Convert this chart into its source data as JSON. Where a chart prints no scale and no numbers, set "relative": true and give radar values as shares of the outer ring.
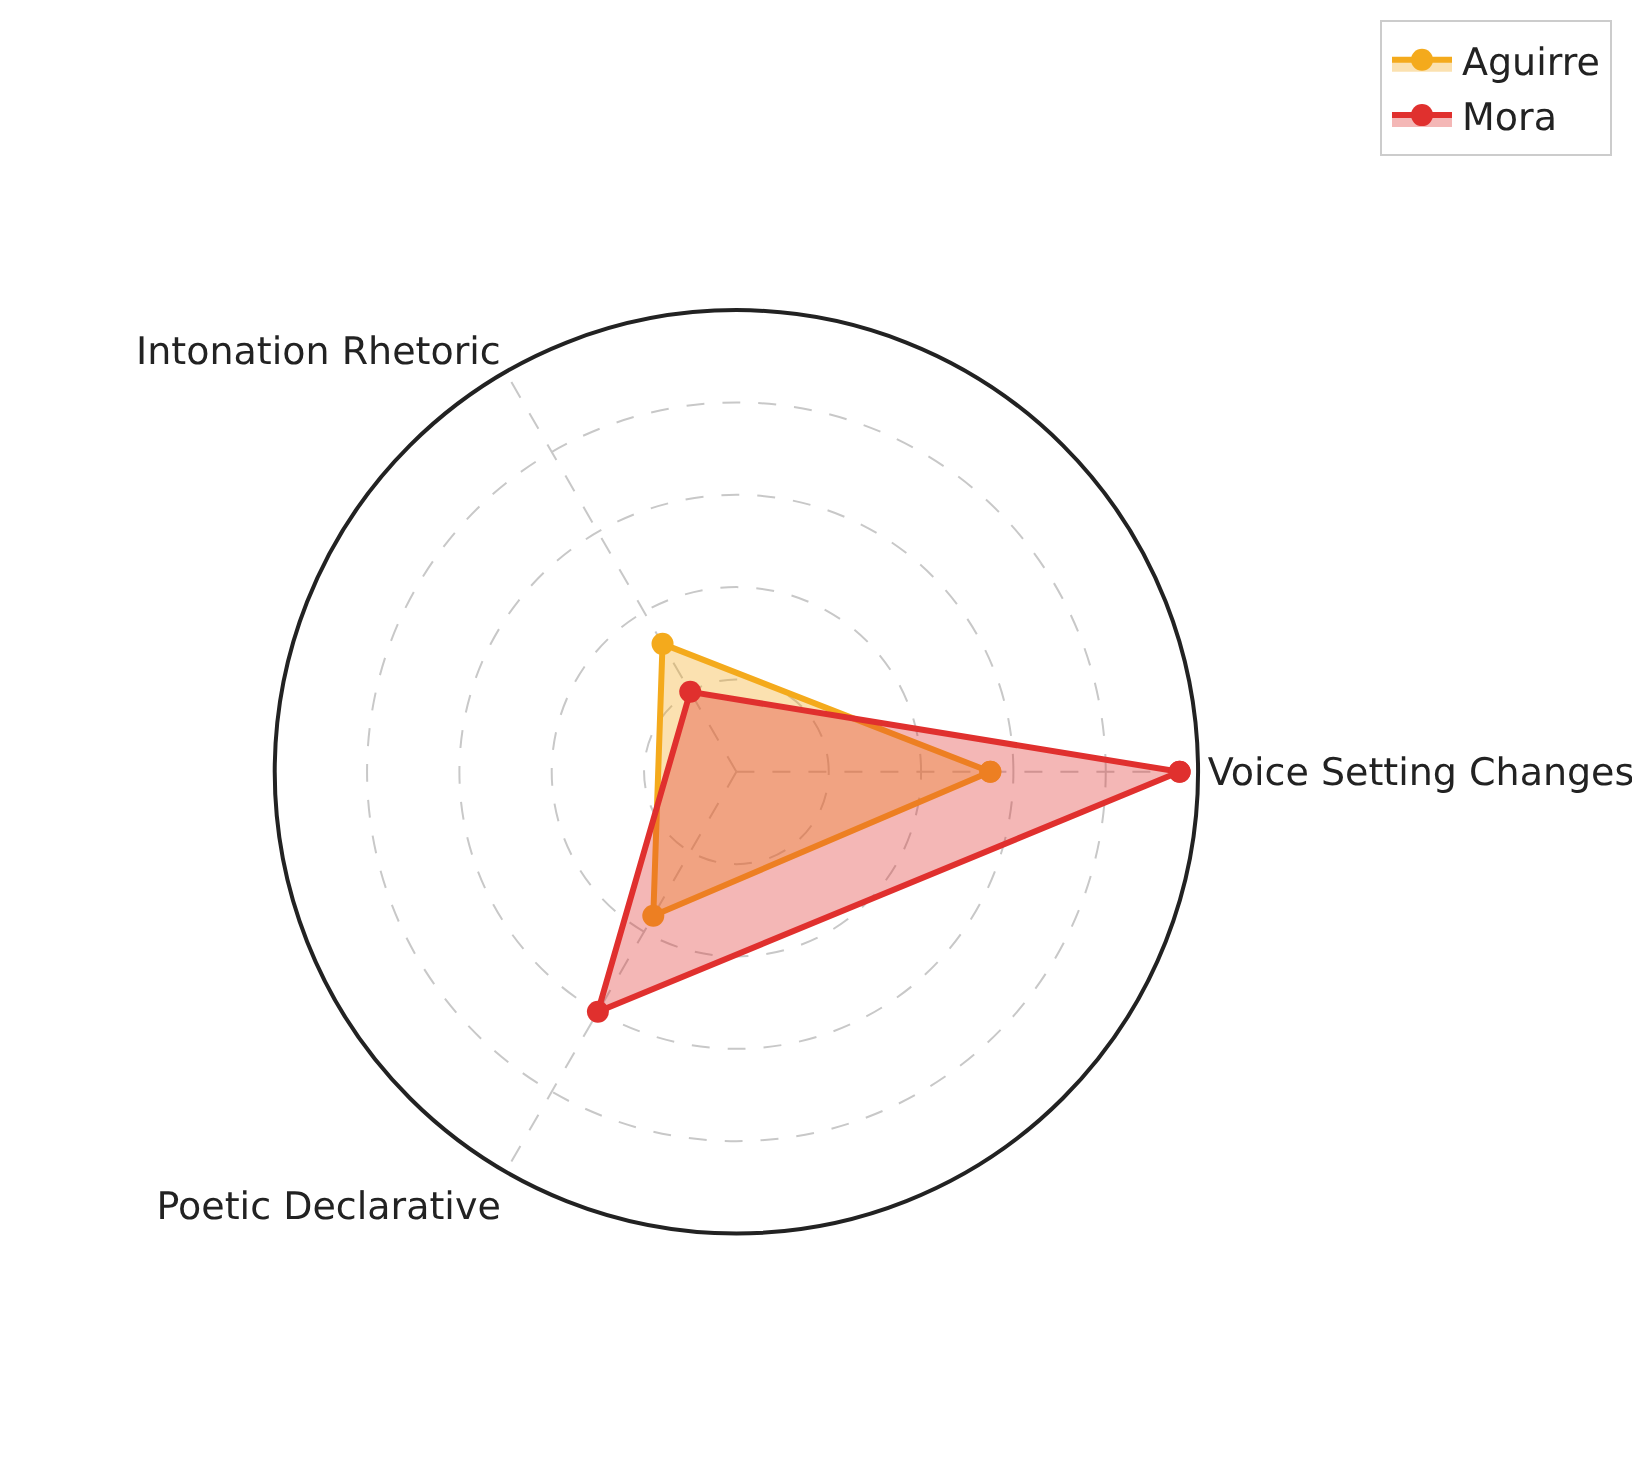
{
  "chart_data": {
    "type": "radar",
    "relative": true,
    "categories": [
      "Voice Setting Changes",
      "Poetic Declarative",
      "Intonation Rhetoric"
    ],
    "series": [
      {
        "name": "Aguirre",
        "color": "#f4aa1c",
        "values": [
          0.55,
          0.36,
          0.32
        ]
      },
      {
        "name": "Mora",
        "color": "#e0302e",
        "values": [
          0.96,
          0.6,
          0.2
        ]
      }
    ],
    "grid": true,
    "legend": "top right",
    "marker": "circle",
    "line_style": "solid"
  }
}
